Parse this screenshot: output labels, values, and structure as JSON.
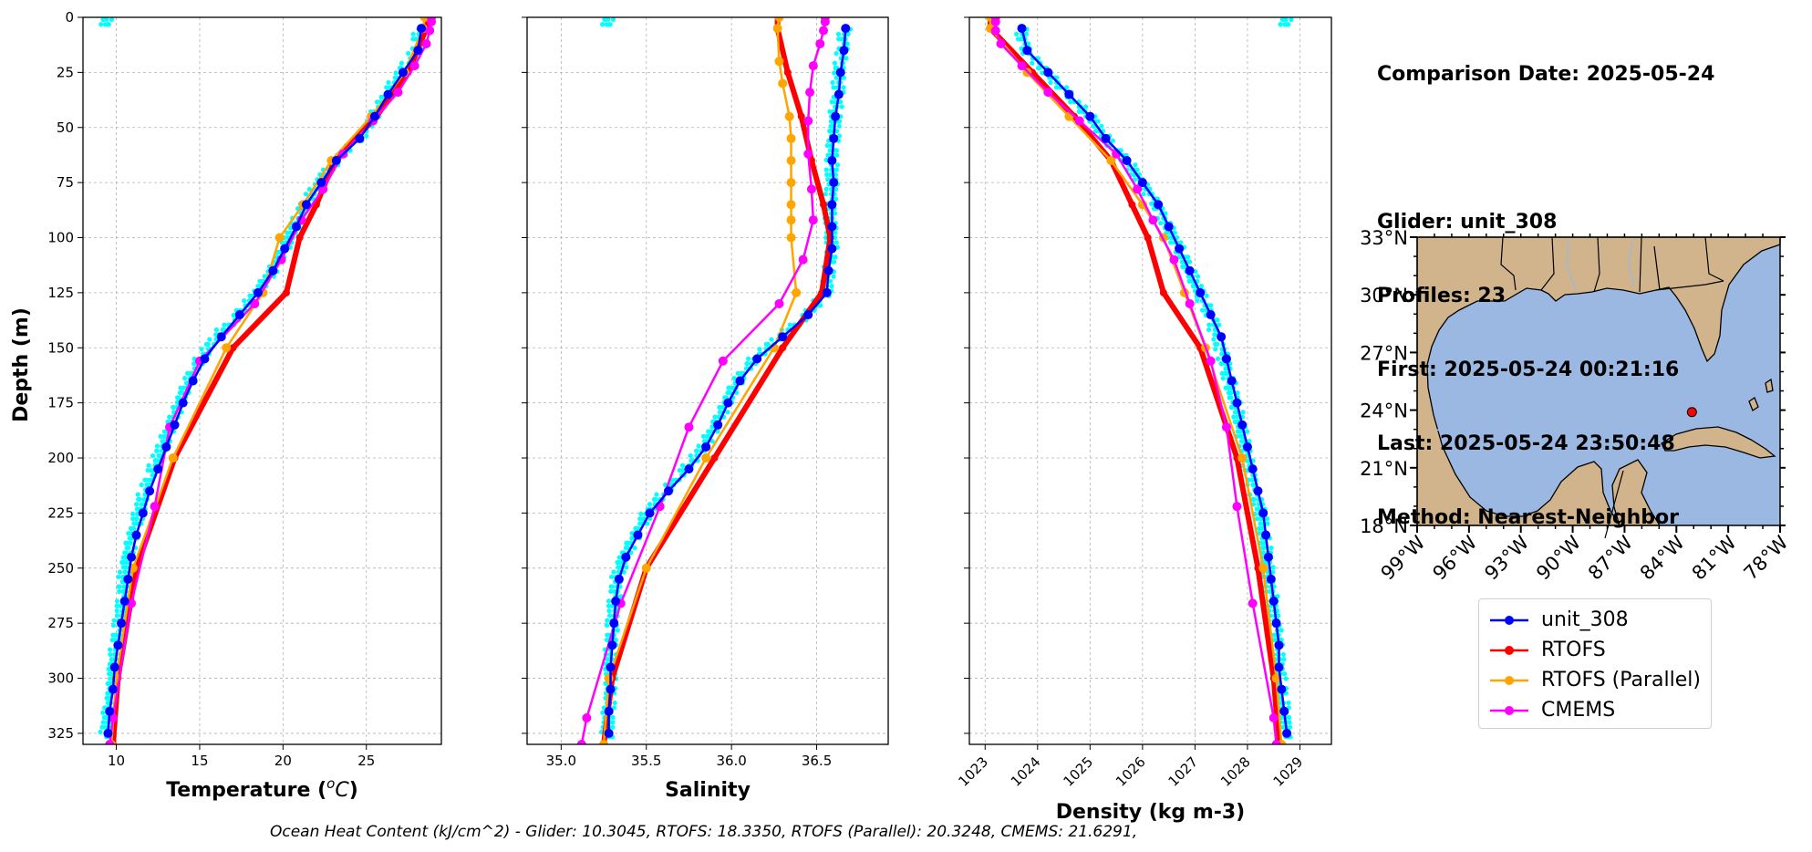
{
  "info": {
    "comparison_date": "Comparison Date: 2025-05-24",
    "glider": "Glider: unit_308",
    "profiles": "Profiles: 23",
    "first": "First: 2025-05-24 00:21:16",
    "last": "Last: 2025-05-24 23:50:48",
    "method": "Method: Nearest-Neighbor"
  },
  "footer": "Ocean Heat Content (kJ/cm^2) - Glider: 10.3045,  RTOFS: 18.3350,  RTOFS (Parallel): 20.3248,  CMEMS: 21.6291,",
  "legend": [
    {
      "name": "unit_308",
      "color": "#0000ff"
    },
    {
      "name": "RTOFS",
      "color": "#ff0000"
    },
    {
      "name": "RTOFS (Parallel)",
      "color": "#ffa500"
    },
    {
      "name": "CMEMS",
      "color": "#ff00ff"
    }
  ],
  "colors": {
    "glider_raw": "#00ffff",
    "land": "#d2b48c",
    "ocean": "#9bb8e2"
  },
  "chart_data": [
    {
      "type": "line",
      "xlabel": "Temperature (°C)",
      "ylabel": "Depth (m)",
      "xlim": [
        8,
        29.5
      ],
      "ylim": [
        330,
        0
      ],
      "xticks": [
        "10",
        "15",
        "20",
        "25"
      ],
      "yticks": [
        "0",
        "25",
        "50",
        "75",
        "100",
        "125",
        "150",
        "175",
        "200",
        "225",
        "250",
        "275",
        "300",
        "325"
      ],
      "grid": true,
      "series": [
        {
          "name": "unit_308",
          "depth": [
            5,
            15,
            25,
            35,
            45,
            55,
            65,
            75,
            85,
            95,
            105,
            115,
            125,
            135,
            145,
            155,
            165,
            175,
            185,
            195,
            205,
            215,
            225,
            235,
            245,
            255,
            265,
            275,
            285,
            295,
            305,
            315,
            325
          ],
          "values": [
            28.3,
            28.1,
            27.2,
            26.3,
            25.5,
            24.6,
            23.2,
            22.3,
            21.4,
            20.8,
            20.1,
            19.4,
            18.5,
            17.4,
            16.3,
            15.3,
            14.6,
            14.0,
            13.5,
            13.0,
            12.5,
            12.0,
            11.6,
            11.2,
            10.9,
            10.7,
            10.5,
            10.3,
            10.1,
            9.9,
            9.8,
            9.6,
            9.5
          ]
        },
        {
          "name": "RTOFS",
          "depth": [
            0,
            5,
            25,
            45,
            65,
            85,
            100,
            125,
            150,
            200,
            250,
            300,
            330
          ],
          "values": [
            28.6,
            28.6,
            27.5,
            25.6,
            23.1,
            22.0,
            21.0,
            20.2,
            17.0,
            13.5,
            11.2,
            10.1,
            9.8
          ]
        },
        {
          "name": "RTOFS (Parallel)",
          "depth": [
            0,
            5,
            25,
            45,
            65,
            85,
            100,
            125,
            150,
            200,
            250,
            300,
            330
          ],
          "values": [
            28.5,
            28.4,
            27.3,
            25.3,
            22.9,
            21.2,
            19.8,
            18.8,
            16.6,
            13.4,
            11.0,
            10.0,
            9.7
          ]
        },
        {
          "name": "CMEMS",
          "depth": [
            0,
            2,
            6,
            12,
            22,
            34,
            47,
            62,
            78,
            92,
            110,
            130,
            156,
            186,
            222,
            266,
            318,
            330
          ],
          "values": [
            28.9,
            28.9,
            28.8,
            28.6,
            27.9,
            26.9,
            25.4,
            23.6,
            22.4,
            21.1,
            19.9,
            18.3,
            15.0,
            13.2,
            12.3,
            10.9,
            9.8,
            9.6
          ]
        }
      ]
    },
    {
      "type": "line",
      "xlabel": "Salinity",
      "xlim": [
        34.8,
        36.92
      ],
      "ylim": [
        330,
        0
      ],
      "xticks": [
        "35.0",
        "35.5",
        "36.0",
        "36.5"
      ],
      "grid": true,
      "series": [
        {
          "name": "unit_308",
          "depth": [
            5,
            15,
            25,
            35,
            45,
            55,
            65,
            75,
            85,
            95,
            105,
            115,
            125,
            135,
            145,
            155,
            165,
            175,
            185,
            195,
            205,
            215,
            225,
            235,
            245,
            255,
            265,
            275,
            285,
            295,
            305,
            315,
            325
          ],
          "values": [
            36.67,
            36.66,
            36.64,
            36.63,
            36.61,
            36.6,
            36.59,
            36.6,
            36.59,
            36.59,
            36.59,
            36.57,
            36.56,
            36.45,
            36.3,
            36.15,
            36.05,
            35.98,
            35.92,
            35.85,
            35.75,
            35.63,
            35.52,
            35.45,
            35.38,
            35.34,
            35.32,
            35.31,
            35.3,
            35.29,
            35.29,
            35.28,
            35.28
          ]
        },
        {
          "name": "RTOFS",
          "depth": [
            0,
            5,
            25,
            45,
            65,
            85,
            100,
            125,
            150,
            200,
            250,
            300,
            330
          ],
          "values": [
            36.27,
            36.27,
            36.33,
            36.41,
            36.47,
            36.54,
            36.58,
            36.53,
            36.3,
            35.9,
            35.5,
            35.3,
            35.25
          ]
        },
        {
          "name": "RTOFS (Parallel)",
          "depth": [
            0,
            5,
            20,
            30,
            45,
            55,
            65,
            75,
            85,
            92,
            100,
            125,
            150,
            200,
            250,
            300,
            330
          ],
          "values": [
            36.28,
            36.27,
            36.28,
            36.3,
            36.34,
            36.35,
            36.35,
            36.35,
            36.35,
            36.35,
            36.35,
            36.38,
            36.25,
            35.85,
            35.5,
            35.28,
            35.25
          ]
        },
        {
          "name": "CMEMS",
          "depth": [
            0,
            2,
            6,
            12,
            22,
            34,
            47,
            62,
            78,
            92,
            110,
            130,
            156,
            186,
            222,
            266,
            318,
            330
          ],
          "values": [
            36.55,
            36.55,
            36.54,
            36.52,
            36.48,
            36.46,
            36.45,
            36.45,
            36.47,
            36.48,
            36.42,
            36.28,
            35.95,
            35.75,
            35.58,
            35.35,
            35.15,
            35.12
          ]
        }
      ]
    },
    {
      "type": "line",
      "xlabel": "Density (kg m-3)",
      "xlim": [
        1022.7,
        1029.6
      ],
      "ylim": [
        330,
        0
      ],
      "xticks": [
        "1023",
        "1024",
        "1025",
        "1026",
        "1027",
        "1028",
        "1029"
      ],
      "grid": true,
      "series": [
        {
          "name": "unit_308",
          "depth": [
            5,
            15,
            25,
            35,
            45,
            55,
            65,
            75,
            85,
            95,
            105,
            115,
            125,
            135,
            145,
            155,
            165,
            175,
            185,
            195,
            205,
            215,
            225,
            235,
            245,
            255,
            265,
            275,
            285,
            295,
            305,
            315,
            325
          ],
          "values": [
            1023.7,
            1023.8,
            1024.2,
            1024.6,
            1025.0,
            1025.3,
            1025.7,
            1026.0,
            1026.3,
            1026.5,
            1026.7,
            1026.9,
            1027.1,
            1027.3,
            1027.5,
            1027.6,
            1027.7,
            1027.8,
            1027.9,
            1028.0,
            1028.1,
            1028.2,
            1028.3,
            1028.35,
            1028.4,
            1028.45,
            1028.5,
            1028.55,
            1028.6,
            1028.6,
            1028.65,
            1028.7,
            1028.75
          ]
        },
        {
          "name": "RTOFS",
          "depth": [
            0,
            5,
            25,
            45,
            65,
            85,
            100,
            125,
            150,
            200,
            250,
            300,
            330
          ],
          "values": [
            1023.1,
            1023.1,
            1023.9,
            1024.7,
            1025.4,
            1025.8,
            1026.1,
            1026.4,
            1027.1,
            1027.8,
            1028.2,
            1028.5,
            1028.6
          ]
        },
        {
          "name": "RTOFS (Parallel)",
          "depth": [
            0,
            5,
            25,
            45,
            65,
            85,
            100,
            125,
            150,
            200,
            250,
            300,
            330
          ],
          "values": [
            1023.1,
            1023.1,
            1023.8,
            1024.6,
            1025.4,
            1026.0,
            1026.4,
            1026.8,
            1027.2,
            1027.9,
            1028.3,
            1028.55,
            1028.65
          ]
        },
        {
          "name": "CMEMS",
          "depth": [
            0,
            2,
            6,
            12,
            22,
            34,
            47,
            62,
            78,
            92,
            110,
            130,
            156,
            186,
            222,
            266,
            318,
            330
          ],
          "values": [
            1023.2,
            1023.2,
            1023.2,
            1023.3,
            1023.7,
            1024.2,
            1024.8,
            1025.5,
            1025.9,
            1026.2,
            1026.6,
            1026.9,
            1027.3,
            1027.6,
            1027.8,
            1028.1,
            1028.5,
            1028.55
          ]
        }
      ]
    },
    {
      "type": "map",
      "lon_range": [
        -99,
        -78
      ],
      "lat_range": [
        18,
        33
      ],
      "xticks": [
        "99°W",
        "96°W",
        "93°W",
        "90°W",
        "87°W",
        "84°W",
        "81°W",
        "78°W"
      ],
      "yticks": [
        "33°N",
        "30°N",
        "27°N",
        "24°N",
        "21°N",
        "18°N"
      ],
      "marker": {
        "lon": -83.1,
        "lat": 23.9,
        "color": "#ff0000"
      }
    }
  ]
}
